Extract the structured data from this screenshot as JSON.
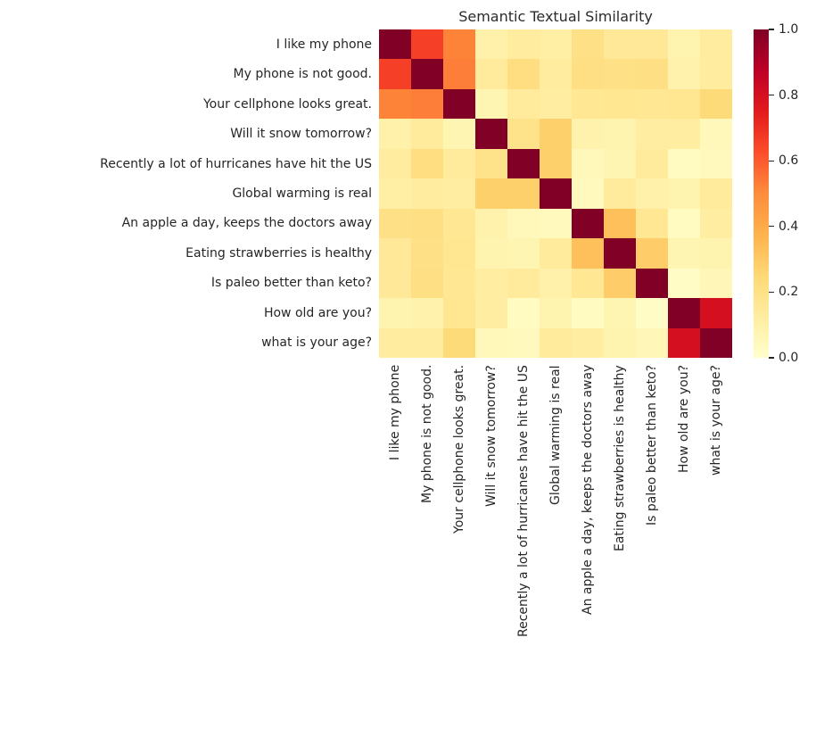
{
  "chart_data": {
    "type": "heatmap",
    "title": "Semantic Textual Similarity",
    "labels": [
      "I like my phone",
      "My phone is not good.",
      "Your cellphone looks great.",
      "Will it snow tomorrow?",
      "Recently a lot of hurricanes have hit the US",
      "Global warming is real",
      "An apple a day, keeps the doctors away",
      "Eating strawberries is healthy",
      "Is paleo better than keto?",
      "How old are you?",
      "what is your age?"
    ],
    "matrix": [
      [
        1.0,
        0.66,
        0.52,
        0.1,
        0.13,
        0.11,
        0.2,
        0.15,
        0.15,
        0.08,
        0.13
      ],
      [
        0.66,
        1.0,
        0.53,
        0.14,
        0.22,
        0.13,
        0.21,
        0.2,
        0.21,
        0.09,
        0.13
      ],
      [
        0.52,
        0.53,
        1.0,
        0.07,
        0.14,
        0.12,
        0.16,
        0.17,
        0.16,
        0.17,
        0.24
      ],
      [
        0.1,
        0.14,
        0.07,
        1.0,
        0.19,
        0.28,
        0.09,
        0.08,
        0.12,
        0.12,
        0.05
      ],
      [
        0.13,
        0.22,
        0.14,
        0.19,
        1.0,
        0.28,
        0.05,
        0.07,
        0.14,
        0.03,
        0.04
      ],
      [
        0.11,
        0.13,
        0.12,
        0.28,
        0.28,
        1.0,
        0.04,
        0.14,
        0.1,
        0.08,
        0.14
      ],
      [
        0.2,
        0.21,
        0.16,
        0.09,
        0.05,
        0.04,
        1.0,
        0.33,
        0.16,
        0.03,
        0.12
      ],
      [
        0.15,
        0.2,
        0.17,
        0.08,
        0.07,
        0.14,
        0.33,
        1.0,
        0.29,
        0.07,
        0.08
      ],
      [
        0.15,
        0.21,
        0.16,
        0.12,
        0.14,
        0.1,
        0.16,
        0.29,
        1.0,
        0.02,
        0.06
      ],
      [
        0.08,
        0.09,
        0.17,
        0.12,
        0.03,
        0.08,
        0.03,
        0.07,
        0.02,
        1.0,
        0.8
      ],
      [
        0.13,
        0.13,
        0.24,
        0.05,
        0.04,
        0.14,
        0.12,
        0.08,
        0.06,
        0.8,
        1.0
      ]
    ],
    "vmin": 0.0,
    "vmax": 1.0,
    "grid": false,
    "colormap": {
      "name": "YlOrRd",
      "stops": [
        {
          "pos": 0.0,
          "color": "#ffffcc"
        },
        {
          "pos": 0.125,
          "color": "#ffeda0"
        },
        {
          "pos": 0.25,
          "color": "#fed976"
        },
        {
          "pos": 0.375,
          "color": "#feb24c"
        },
        {
          "pos": 0.5,
          "color": "#fd8d3c"
        },
        {
          "pos": 0.625,
          "color": "#fc4e2a"
        },
        {
          "pos": 0.75,
          "color": "#e31a1c"
        },
        {
          "pos": 0.875,
          "color": "#bd0026"
        },
        {
          "pos": 1.0,
          "color": "#800026"
        }
      ]
    },
    "colorbar": {
      "position": "right",
      "ticks": [
        {
          "value": 1.0,
          "label": "1.0"
        },
        {
          "value": 0.8,
          "label": "0.8"
        },
        {
          "value": 0.6,
          "label": "0.6"
        },
        {
          "value": 0.4,
          "label": "0.4"
        },
        {
          "value": 0.2,
          "label": "0.2"
        },
        {
          "value": 0.0,
          "label": "0.0"
        }
      ]
    },
    "text_color": "#262626",
    "background_color": "#ffffff"
  }
}
